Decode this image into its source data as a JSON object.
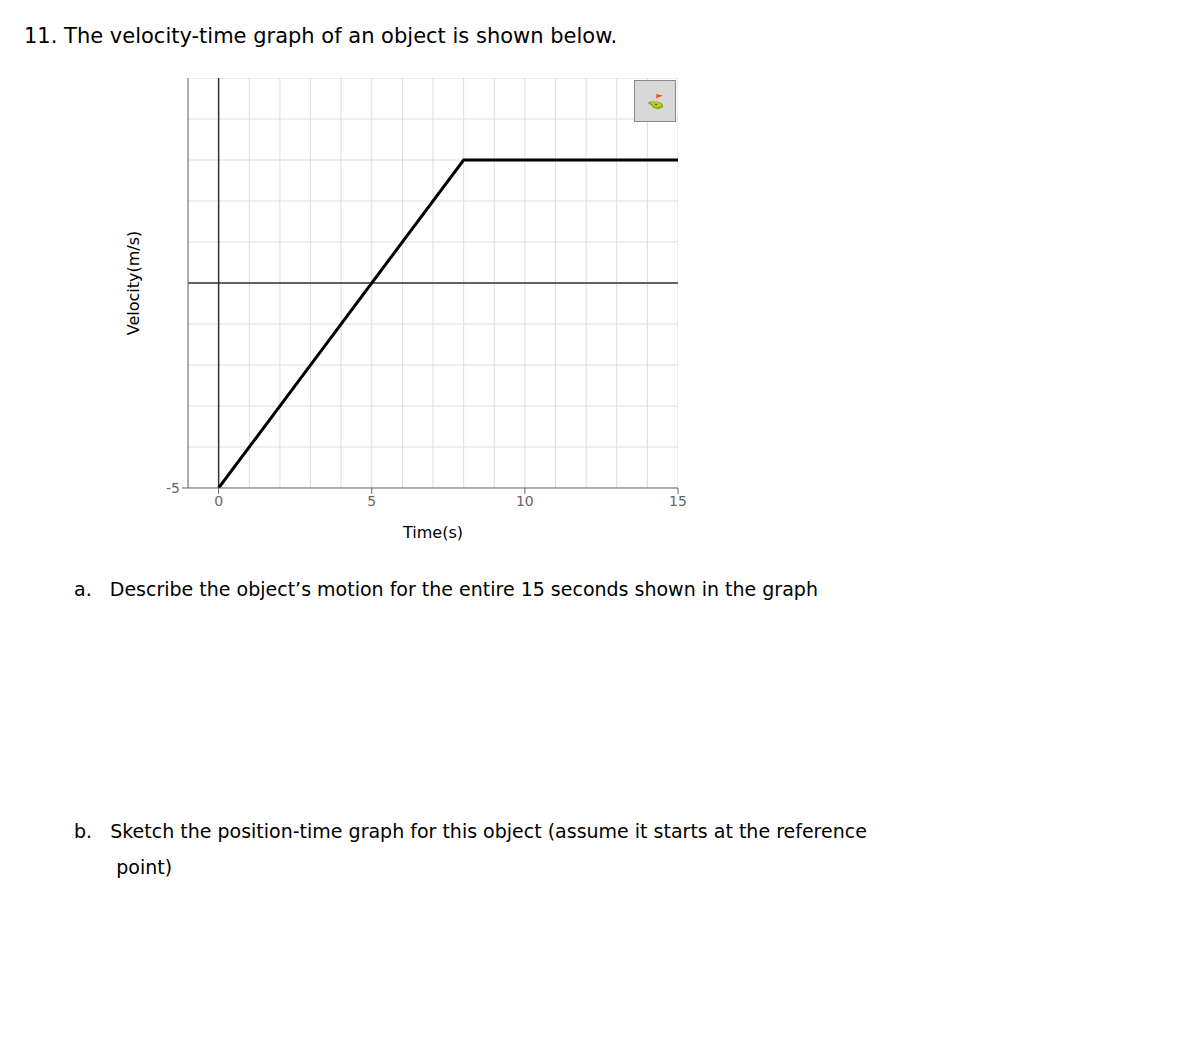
{
  "chart_data": {
    "type": "line",
    "title": "11. The velocity-time graph of an object is shown below.",
    "xlabel": "Time(s)",
    "ylabel": "Velocity(m/s)",
    "x": [
      0,
      8,
      15
    ],
    "values": [
      -5,
      3,
      3
    ],
    "color": "#000000",
    "xlim": [
      -1,
      15
    ],
    "ylim": [
      -5,
      5
    ],
    "xticks": [
      0,
      5,
      10,
      15
    ],
    "yticks": [
      -5
    ],
    "grid": true,
    "annotations": [
      "a.   Describe the object’s motion for the entire 15 seconds shown in the graph",
      "b.   Sketch the position-time graph for this object (assume it starts at the reference",
      "       point)",
      "⛳"
    ]
  }
}
